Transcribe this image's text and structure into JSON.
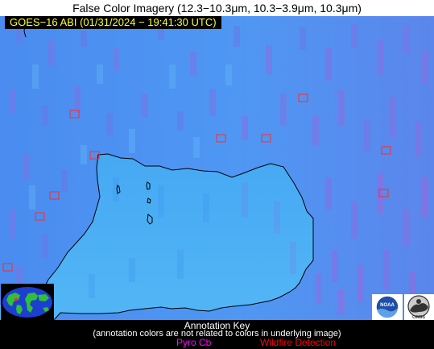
{
  "header": {
    "title_prefix": "False Color Imagery (12.3−10.3",
    "title_um1": "μm, 10.3−3.9",
    "title_um2": "μm, 10.3",
    "title_um3": "μm)"
  },
  "timestamp": "GOES−16 ABI (01/31/2024 − 19:41:30 UTC)",
  "legend": {
    "title": "Annotation Key",
    "note": "(annotation colors are not related to colors in underlying image)",
    "pyro_cb_label": "Pyro Cb",
    "pyro_cb_color": "#ff00ff",
    "wildfire_label": "Wildfire Detection",
    "wildfire_color": "#ff0000"
  },
  "logos": {
    "noaa": "NOAA",
    "cimss": "CIMSS"
  },
  "colors": {
    "ocean": "#4f93f2",
    "land": "#4cb0f4",
    "coastline": "#000000",
    "wildfire_box": "#ff2a2a"
  }
}
